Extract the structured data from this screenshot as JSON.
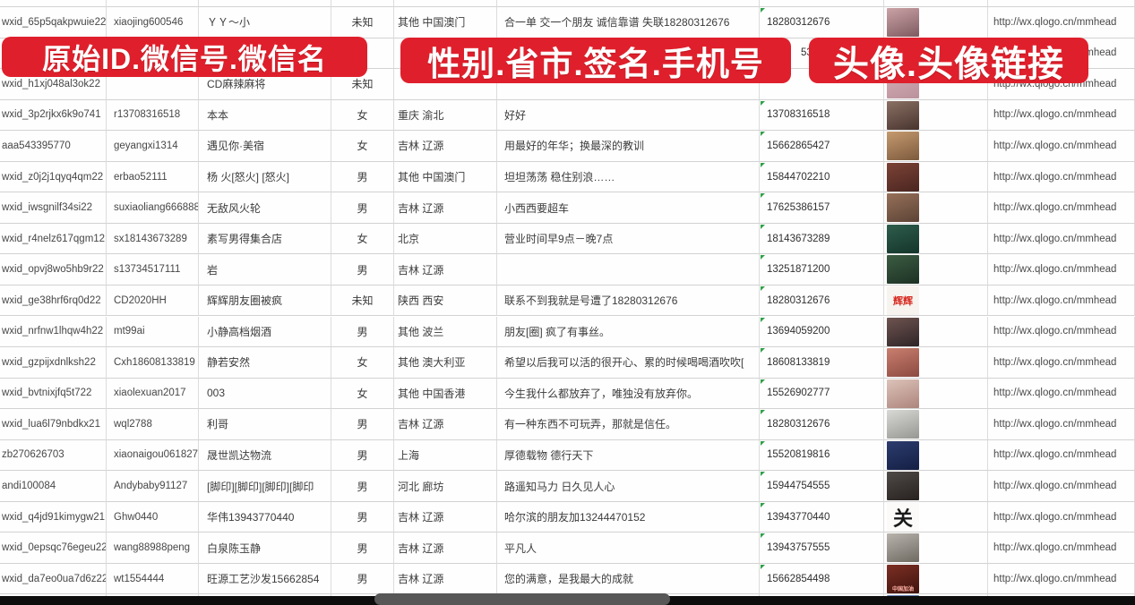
{
  "banners": {
    "left": "原始ID.微信号.微信名",
    "middle": "性别.省市.签名.手机号",
    "right": "头像.头像链接"
  },
  "column_semantics": [
    "原始ID",
    "微信号",
    "微信名",
    "性别",
    "省市",
    "签名",
    "手机号",
    "头像",
    "头像链接"
  ],
  "colors": {
    "banner_red": "#df202c",
    "gridline": "#d2d2d2",
    "flag_green": "#2fa04a",
    "bottom_bar": "#0d0d0d",
    "scrubber_grey": "#575757"
  },
  "rows": [
    {
      "id": "wxid_65p5qakpwuie22",
      "account": "xiaojing600546",
      "name": "ＹＹ～小",
      "gender": "未知",
      "region": "其他 中国澳门",
      "sig": "合一单 交一个朋友 诚信靠谱 失联18280312676",
      "phone": "18280312676",
      "url": "http://wx.qlogo.cn/mmhead",
      "avatar": {
        "g": [
          "#caa3a6",
          "#7e5a60"
        ]
      },
      "flag": true
    },
    {
      "id": "",
      "account": "",
      "name": "",
      "gender": "",
      "region": "",
      "sig": "",
      "phone": "",
      "phone_partial": "5386",
      "url": "http://wx.qlogo.cn/mmhead",
      "avatar": {
        "g": [
          "#c9b6bb",
          "#998086"
        ]
      },
      "flag": true
    },
    {
      "id": "wxid_h1xj048al3ok22",
      "account": "",
      "name": "CD麻辣麻将",
      "gender": "未知",
      "region": "",
      "sig": "",
      "phone": "",
      "url": "http://wx.qlogo.cn/mmhead",
      "avatar": {
        "g": [
          "#d6aeb6",
          "#b9929c"
        ]
      },
      "flag": true
    },
    {
      "id": "wxid_3p2rjkx6k9o741",
      "account": "r13708316518",
      "name": "本本",
      "gender": "女",
      "region": "重庆 渝北",
      "sig": "好好",
      "phone": "13708316518",
      "url": "http://wx.qlogo.cn/mmhead",
      "avatar": {
        "g": [
          "#8a7064",
          "#48342e"
        ]
      },
      "flag": true
    },
    {
      "id": "aaa543395770",
      "account": "geyangxi1314",
      "name": "遇见你·美宿",
      "gender": "女",
      "region": "吉林 辽源",
      "sig": "用最好的年华；换最深的教训",
      "phone": "15662865427",
      "url": "http://wx.qlogo.cn/mmhead",
      "avatar": {
        "g": [
          "#c59a6e",
          "#7d5a3e"
        ]
      },
      "flag": true
    },
    {
      "id": "wxid_z0j2j1qyq4qm22",
      "account": "erbao52111",
      "name": "杨 火[怒火] [怒火]",
      "gender": "男",
      "region": "其他 中国澳门",
      "sig": "坦坦荡荡 稳住别浪……",
      "phone": "15844702210",
      "url": "http://wx.qlogo.cn/mmhead",
      "avatar": {
        "g": [
          "#7c4236",
          "#4a2620"
        ]
      },
      "flag": true
    },
    {
      "id": "wxid_iwsgnilf34si22",
      "account": "suxiaoliang666888",
      "name": "无敌风火轮",
      "gender": "男",
      "region": "吉林 辽源",
      "sig": "小西西要超车",
      "phone": "17625386157",
      "url": "http://wx.qlogo.cn/mmhead",
      "avatar": {
        "g": [
          "#96705a",
          "#5c4335"
        ]
      },
      "flag": true
    },
    {
      "id": "wxid_r4nelz617qgm12",
      "account": "sx18143673289",
      "name": "素写男得集合店",
      "gender": "女",
      "region": "北京",
      "sig": "营业时间早9点－晚7点",
      "phone": "18143673289",
      "url": "http://wx.qlogo.cn/mmhead",
      "avatar": {
        "g": [
          "#2e5d4c",
          "#14352a"
        ]
      },
      "flag": true
    },
    {
      "id": "wxid_opvj8wo5hb9r22",
      "account": "s13734517111",
      "name": "岩",
      "gender": "男",
      "region": "吉林 辽源",
      "sig": "",
      "phone": "13251871200",
      "url": "http://wx.qlogo.cn/mmhead",
      "avatar": {
        "g": [
          "#3c5c42",
          "#1c3124"
        ]
      },
      "flag": true
    },
    {
      "id": "wxid_ge38hrf6rq0d22",
      "account": "CD2020HH",
      "name": "辉辉朋友圈被疯",
      "gender": "未知",
      "region": "陕西 西安",
      "sig": "联系不到我就是号遭了18280312676",
      "phone": "18280312676",
      "url": "http://wx.qlogo.cn/mmhead",
      "avatar": {
        "bg": "#f7f3ef",
        "t": "辉辉",
        "tc": "#d6281e",
        "fs": 11
      },
      "flag": true
    },
    {
      "id": "wxid_nrfnw1lhqw4h22",
      "account": "mt99ai",
      "name": "小静高档烟酒",
      "gender": "男",
      "region": "其他 波兰",
      "sig": "朋友[圈] 疯了有事丝。",
      "phone": "13694059200",
      "url": "http://wx.qlogo.cn/mmhead",
      "avatar": {
        "g": [
          "#6e5450",
          "#2f2427"
        ]
      },
      "flag": true
    },
    {
      "id": "wxid_gzpijxdnlksh22",
      "account": "Cxh18608133819",
      "name": "静若安然",
      "gender": "女",
      "region": "其他 澳大利亚",
      "sig": "希望以后我可以活的很开心、累的时候喝喝酒吹吹[",
      "phone": "18608133819",
      "url": "http://wx.qlogo.cn/mmhead",
      "avatar": {
        "g": [
          "#c97f6f",
          "#8c4a41"
        ]
      },
      "flag": true
    },
    {
      "id": "wxid_bvtnixjfq5t722",
      "account": "xiaolexuan2017",
      "name": "003",
      "gender": "女",
      "region": "其他 中国香港",
      "sig": "今生我什么都放弃了，唯独没有放弃你。",
      "phone": "15526902777",
      "url": "http://wx.qlogo.cn/mmhead",
      "avatar": {
        "g": [
          "#dcc3b9",
          "#ad847c"
        ]
      },
      "flag": true
    },
    {
      "id": "wxid_lua6l79nbdkx21",
      "account": "wql2788",
      "name": "利哥",
      "gender": "男",
      "region": "吉林 辽源",
      "sig": "有一种东西不可玩弄，那就是信任。",
      "phone": "18280312676",
      "url": "http://wx.qlogo.cn/mmhead",
      "avatar": {
        "g": [
          "#d9d9d6",
          "#969692"
        ]
      },
      "flag": true
    },
    {
      "id": "zb270626703",
      "account": "xiaonaigou061827",
      "name": "晟世凯达物流",
      "gender": "男",
      "region": "上海",
      "sig": "厚德载物 德行天下",
      "phone": "15520819816",
      "url": "http://wx.qlogo.cn/mmhead",
      "avatar": {
        "g": [
          "#2c3c6e",
          "#141f44"
        ]
      },
      "flag": true
    },
    {
      "id": "andi100084",
      "account": "Andybaby91127",
      "name": "[脚印][脚印][脚印][脚印",
      "gender": "男",
      "region": "河北 廊坊",
      "sig": "路遥知马力 日久见人心",
      "phone": "15944754555",
      "url": "http://wx.qlogo.cn/mmhead",
      "avatar": {
        "g": [
          "#4f4b49",
          "#27211f"
        ]
      },
      "flag": true
    },
    {
      "id": "wxid_q4jd91kimygw21",
      "account": "Ghw0440",
      "name": "华伟13943770440",
      "gender": "男",
      "region": "吉林 辽源",
      "sig": "哈尔滨的朋友加13244470152",
      "phone": "13943770440",
      "url": "http://wx.qlogo.cn/mmhead",
      "avatar": {
        "bg": "#fbfaf8",
        "t": "关",
        "tc": "#1a1a1a",
        "fs": 22
      },
      "flag": true
    },
    {
      "id": "wxid_0epsqc76egeu22",
      "account": "wang88988peng",
      "name": "白泉陈玉静",
      "gender": "男",
      "region": "吉林 辽源",
      "sig": "平凡人",
      "phone": "13943757555",
      "url": "http://wx.qlogo.cn/mmhead",
      "avatar": {
        "g": [
          "#b8b4ad",
          "#6e6a62"
        ]
      },
      "flag": true
    },
    {
      "id": "wxid_da7eo0ua7d6z22",
      "account": "wt1554444",
      "name": "旺源工艺沙发15662854",
      "gender": "男",
      "region": "吉林 辽源",
      "sig": "您的满意，是我最大的成就",
      "phone": "15662854498",
      "url": "http://wx.qlogo.cn/mmhead",
      "avatar": {
        "g": [
          "#7c2f24",
          "#3f130e"
        ],
        "mini": "中国加油",
        "minic": "#ffb3a7"
      },
      "flag": true
    }
  ],
  "partial_bottom_row": {
    "avatar": {
      "g": [
        "#6f87b8",
        "#46608f"
      ]
    }
  }
}
